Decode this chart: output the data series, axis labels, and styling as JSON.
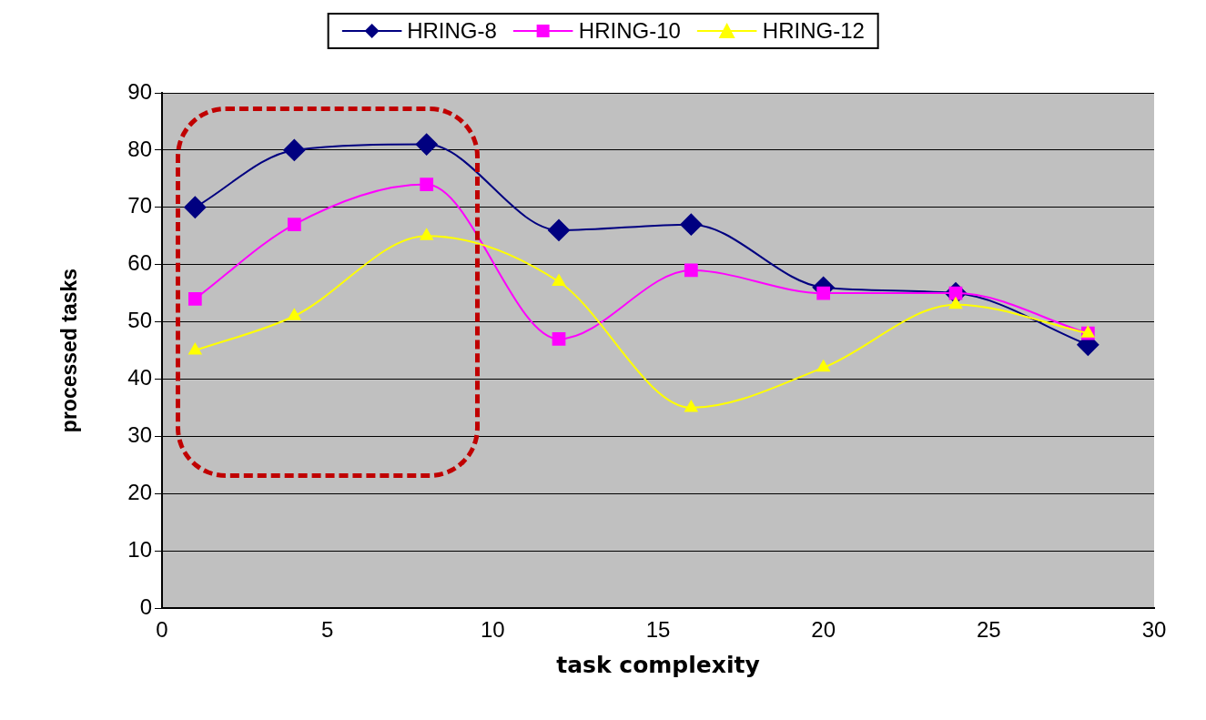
{
  "chart_data": {
    "type": "line",
    "xlabel": "task complexity",
    "ylabel": "processed tasks",
    "xlim": [
      0,
      30
    ],
    "xticks": [
      0,
      5,
      10,
      15,
      20,
      25,
      30
    ],
    "ylim": [
      0,
      90
    ],
    "yticks": [
      0,
      10,
      20,
      30,
      40,
      50,
      60,
      70,
      80,
      90
    ],
    "grid": "y",
    "legend": "top",
    "line_style": "solid",
    "x": [
      1,
      4,
      8,
      12,
      16,
      20,
      24,
      28
    ],
    "series": [
      {
        "name": "HRING-8",
        "color": "#000080",
        "marker": "diamond",
        "values": [
          70,
          80,
          81,
          66,
          67,
          56,
          55,
          46
        ]
      },
      {
        "name": "HRING-10",
        "color": "#ff00ff",
        "marker": "square",
        "values": [
          54,
          67,
          74,
          47,
          59,
          55,
          55,
          48
        ]
      },
      {
        "name": "HRING-12",
        "color": "#ffff00",
        "marker": "triangle",
        "values": [
          45,
          51,
          65,
          57,
          35,
          42,
          53,
          48
        ]
      }
    ]
  }
}
